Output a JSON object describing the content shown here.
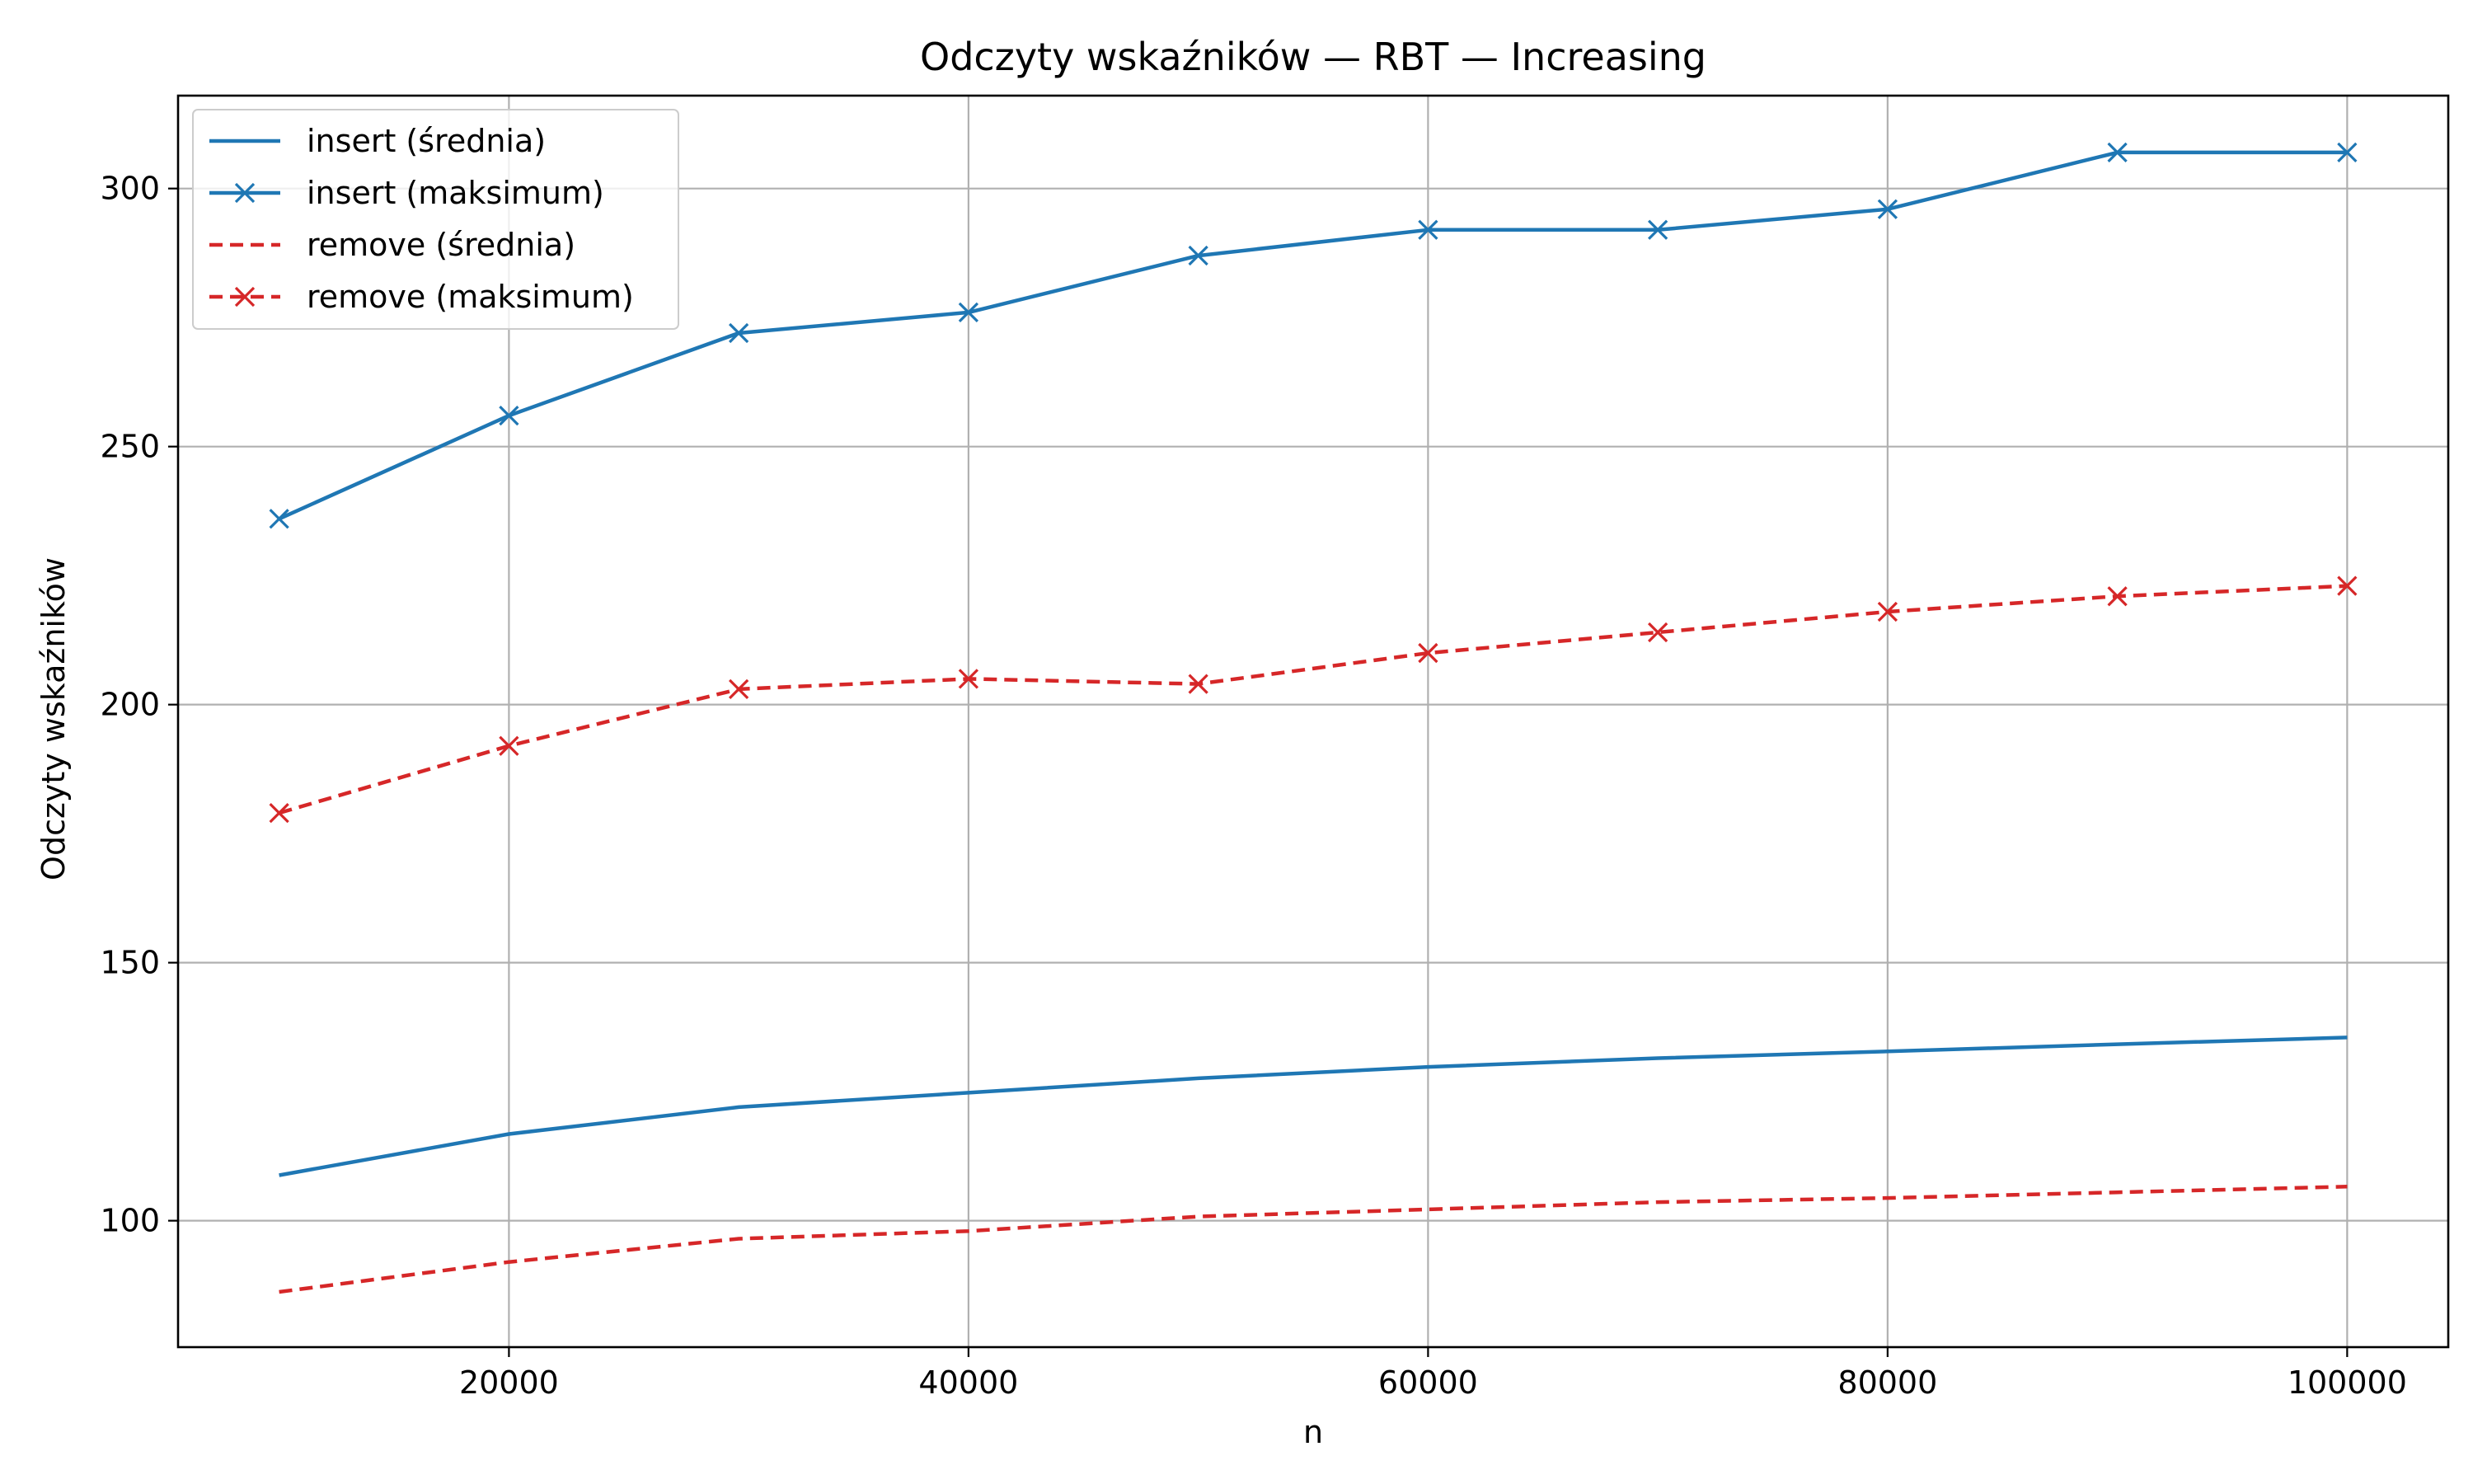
{
  "chart_data": {
    "type": "line",
    "title": "Odczyty wskaźników — RBT — Increasing",
    "xlabel": "n",
    "ylabel": "Odczyty wskaźników",
    "x": [
      10000,
      20000,
      30000,
      40000,
      50000,
      60000,
      70000,
      80000,
      90000,
      100000
    ],
    "xlim": [
      5600,
      104400
    ],
    "ylim": [
      75.5,
      318
    ],
    "xticks": [
      20000,
      40000,
      60000,
      80000,
      100000
    ],
    "yticks": [
      100,
      150,
      200,
      250,
      300
    ],
    "grid": true,
    "legend_position": "top-left",
    "series": [
      {
        "name": "insert (średnia)",
        "color": "#1f77b4",
        "dash": "solid",
        "marker": "none",
        "values": [
          108.8,
          116.8,
          122,
          124.8,
          127.6,
          129.8,
          131.5,
          132.8,
          134.2,
          135.5
        ]
      },
      {
        "name": "insert (maksimum)",
        "color": "#1f77b4",
        "dash": "solid",
        "marker": "x",
        "values": [
          236,
          256,
          272,
          276,
          287,
          292,
          292,
          296,
          307,
          307
        ]
      },
      {
        "name": "remove (średnia)",
        "color": "#d62728",
        "dash": "dashed",
        "marker": "none",
        "values": [
          86.2,
          92,
          96.5,
          98,
          100.8,
          102.2,
          103.6,
          104.4,
          105.5,
          106.6
        ]
      },
      {
        "name": "remove (maksimum)",
        "color": "#d62728",
        "dash": "dashed",
        "marker": "x",
        "values": [
          179,
          192,
          203,
          205,
          204,
          210,
          214,
          218,
          221,
          223
        ]
      }
    ]
  }
}
